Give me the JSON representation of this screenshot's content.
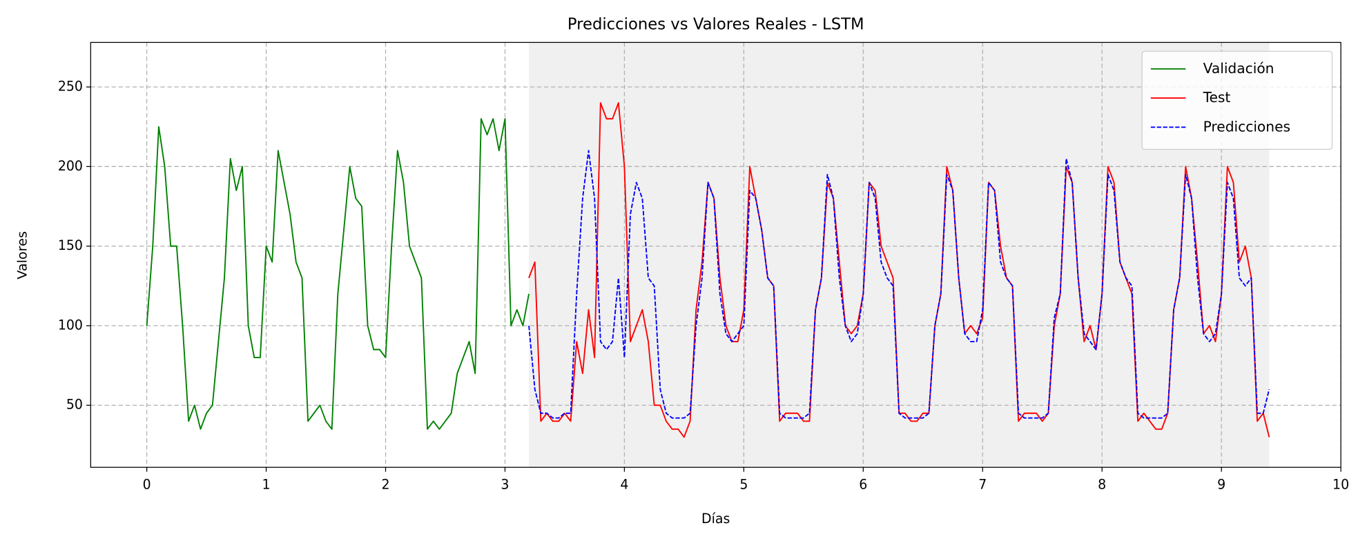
{
  "chart_data": {
    "type": "line",
    "title": "Predicciones vs Valores Reales - LSTM",
    "xlabel": "Días",
    "ylabel": "Valores",
    "xlim": [
      -0.47,
      10
    ],
    "xticks": [
      0,
      1,
      2,
      3,
      4,
      5,
      6,
      7,
      8,
      9,
      10
    ],
    "ylim": [
      11,
      278
    ],
    "yticks": [
      50,
      100,
      150,
      200,
      250
    ],
    "grid": true,
    "legend": "upper right",
    "shaded_region": {
      "x": [
        3.2,
        9.4
      ],
      "color": "#f0f0f0"
    },
    "series": [
      {
        "name": "Validación",
        "color": "#008000",
        "linestyle": "solid",
        "x": [
          0,
          0.05,
          0.1,
          0.15,
          0.2,
          0.25,
          0.3,
          0.35,
          0.4,
          0.45,
          0.5,
          0.55,
          0.6,
          0.65,
          0.7,
          0.75,
          0.8,
          0.85,
          0.9,
          0.95,
          1,
          1.05,
          1.1,
          1.15,
          1.2,
          1.25,
          1.3,
          1.35,
          1.4,
          1.45,
          1.5,
          1.55,
          1.6,
          1.65,
          1.7,
          1.75,
          1.8,
          1.85,
          1.9,
          1.95,
          2,
          2.05,
          2.1,
          2.15,
          2.2,
          2.25,
          2.3,
          2.35,
          2.4,
          2.45,
          2.5,
          2.55,
          2.6,
          2.65,
          2.7,
          2.75,
          2.8,
          2.85,
          2.9,
          2.95,
          3,
          3.05,
          3.1,
          3.15,
          3.2
        ],
        "values": [
          100,
          150,
          225,
          200,
          150,
          150,
          100,
          40,
          50,
          35,
          45,
          50,
          90,
          130,
          205,
          185,
          200,
          100,
          80,
          80,
          150,
          140,
          210,
          190,
          170,
          140,
          130,
          40,
          45,
          50,
          40,
          35,
          120,
          160,
          200,
          180,
          175,
          100,
          85,
          85,
          80,
          150,
          210,
          190,
          150,
          140,
          130,
          35,
          40,
          35,
          40,
          45,
          70,
          80,
          90,
          70,
          230,
          220,
          230,
          210,
          230,
          100,
          110,
          100,
          120
        ]
      },
      {
        "name": "Test",
        "color": "#ff0000",
        "linestyle": "solid",
        "x": [
          3.2,
          3.25,
          3.3,
          3.35,
          3.4,
          3.45,
          3.5,
          3.55,
          3.6,
          3.65,
          3.7,
          3.75,
          3.8,
          3.85,
          3.9,
          3.95,
          4,
          4.05,
          4.1,
          4.15,
          4.2,
          4.25,
          4.3,
          4.35,
          4.4,
          4.45,
          4.5,
          4.55,
          4.6,
          4.65,
          4.7,
          4.75,
          4.8,
          4.85,
          4.9,
          4.95,
          5,
          5.05,
          5.1,
          5.15,
          5.2,
          5.25,
          5.3,
          5.35,
          5.4,
          5.45,
          5.5,
          5.55,
          5.6,
          5.65,
          5.7,
          5.75,
          5.8,
          5.85,
          5.9,
          5.95,
          6,
          6.05,
          6.1,
          6.15,
          6.2,
          6.25,
          6.3,
          6.35,
          6.4,
          6.45,
          6.5,
          6.55,
          6.6,
          6.65,
          6.7,
          6.75,
          6.8,
          6.85,
          6.9,
          6.95,
          7,
          7.05,
          7.1,
          7.15,
          7.2,
          7.25,
          7.3,
          7.35,
          7.4,
          7.45,
          7.5,
          7.55,
          7.6,
          7.65,
          7.7,
          7.75,
          7.8,
          7.85,
          7.9,
          7.95,
          8,
          8.05,
          8.1,
          8.15,
          8.2,
          8.25,
          8.3,
          8.35,
          8.4,
          8.45,
          8.5,
          8.55,
          8.6,
          8.65,
          8.7,
          8.75,
          8.8,
          8.85,
          8.9,
          8.95,
          9,
          9.05,
          9.1,
          9.15,
          9.2,
          9.25,
          9.3,
          9.35,
          9.4
        ],
        "values": [
          130,
          140,
          40,
          45,
          40,
          40,
          45,
          40,
          90,
          70,
          110,
          80,
          240,
          230,
          230,
          240,
          200,
          90,
          100,
          110,
          90,
          50,
          50,
          40,
          35,
          35,
          30,
          40,
          110,
          140,
          190,
          180,
          130,
          100,
          90,
          90,
          110,
          200,
          180,
          160,
          130,
          125,
          40,
          45,
          45,
          45,
          40,
          40,
          110,
          130,
          190,
          180,
          140,
          100,
          95,
          100,
          120,
          190,
          185,
          150,
          140,
          130,
          45,
          45,
          40,
          40,
          45,
          45,
          100,
          120,
          200,
          185,
          130,
          95,
          100,
          95,
          105,
          190,
          185,
          150,
          130,
          125,
          40,
          45,
          45,
          45,
          40,
          45,
          100,
          120,
          200,
          190,
          130,
          90,
          100,
          85,
          120,
          200,
          190,
          140,
          130,
          120,
          40,
          45,
          40,
          35,
          35,
          45,
          110,
          130,
          200,
          180,
          140,
          95,
          100,
          90,
          120,
          200,
          190,
          140,
          150,
          130,
          40,
          45,
          30
        ]
      },
      {
        "name": "Predicciones",
        "color": "#0000ff",
        "linestyle": "dashed",
        "x": [
          3.2,
          3.25,
          3.3,
          3.35,
          3.4,
          3.45,
          3.5,
          3.55,
          3.6,
          3.65,
          3.7,
          3.75,
          3.8,
          3.85,
          3.9,
          3.95,
          4,
          4.05,
          4.1,
          4.15,
          4.2,
          4.25,
          4.3,
          4.35,
          4.4,
          4.45,
          4.5,
          4.55,
          4.6,
          4.65,
          4.7,
          4.75,
          4.8,
          4.85,
          4.9,
          4.95,
          5,
          5.05,
          5.1,
          5.15,
          5.2,
          5.25,
          5.3,
          5.35,
          5.4,
          5.45,
          5.5,
          5.55,
          5.6,
          5.65,
          5.7,
          5.75,
          5.8,
          5.85,
          5.9,
          5.95,
          6,
          6.05,
          6.1,
          6.15,
          6.2,
          6.25,
          6.3,
          6.35,
          6.4,
          6.45,
          6.5,
          6.55,
          6.6,
          6.65,
          6.7,
          6.75,
          6.8,
          6.85,
          6.9,
          6.95,
          7,
          7.05,
          7.1,
          7.15,
          7.2,
          7.25,
          7.3,
          7.35,
          7.4,
          7.45,
          7.5,
          7.55,
          7.6,
          7.65,
          7.7,
          7.75,
          7.8,
          7.85,
          7.9,
          7.95,
          8,
          8.05,
          8.1,
          8.15,
          8.2,
          8.25,
          8.3,
          8.35,
          8.4,
          8.45,
          8.5,
          8.55,
          8.6,
          8.65,
          8.7,
          8.75,
          8.8,
          8.85,
          8.9,
          8.95,
          9,
          9.05,
          9.1,
          9.15,
          9.2,
          9.25,
          9.3,
          9.35,
          9.4
        ],
        "values": [
          100,
          60,
          45,
          45,
          42,
          42,
          45,
          45,
          120,
          180,
          210,
          180,
          90,
          85,
          90,
          130,
          80,
          170,
          190,
          180,
          130,
          125,
          60,
          45,
          42,
          42,
          42,
          45,
          100,
          130,
          190,
          180,
          120,
          95,
          90,
          95,
          100,
          185,
          180,
          160,
          130,
          125,
          45,
          42,
          42,
          42,
          42,
          45,
          110,
          130,
          195,
          180,
          130,
          100,
          90,
          95,
          120,
          190,
          180,
          140,
          130,
          125,
          45,
          42,
          42,
          42,
          42,
          45,
          100,
          120,
          195,
          185,
          130,
          95,
          90,
          90,
          110,
          190,
          185,
          140,
          130,
          125,
          45,
          42,
          42,
          42,
          42,
          45,
          105,
          120,
          205,
          190,
          130,
          95,
          90,
          85,
          120,
          195,
          185,
          140,
          130,
          125,
          45,
          42,
          42,
          42,
          42,
          45,
          110,
          130,
          195,
          180,
          130,
          95,
          90,
          95,
          120,
          190,
          180,
          130,
          125,
          130,
          45,
          45,
          60
        ]
      }
    ]
  }
}
